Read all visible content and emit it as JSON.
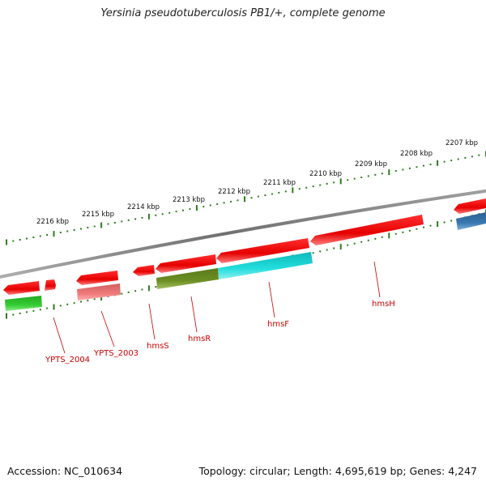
{
  "title": "Yersinia pseudotuberculosis PB1/+, complete genome",
  "footer": {
    "accession": "Accession: NC_010634",
    "topology": "Topology: circular; Length: 4,695,619 bp; Genes: 4,247"
  },
  "scale_labels": [
    "2216 kbp",
    "2215 kbp",
    "2214 kbp",
    "2213 kbp",
    "2212 kbp",
    "2211 kbp",
    "2210 kbp",
    "2209 kbp",
    "2208 kbp",
    "2207 kbp"
  ],
  "gene_labels": [
    "YPTS_2004",
    "YPTS_2003",
    "hmsS",
    "hmsR",
    "hmsF",
    "hmsH"
  ],
  "colors": {
    "backbone": "#7a7a7a",
    "tick": "#2e7d1e",
    "cds_forward": "#ee1111",
    "cds_reverse_pale": "#f08080",
    "cog_green": "#33bb33",
    "cog_olive": "#6b8e23",
    "cog_cyan": "#22cccc",
    "cog_blue": "#3a78b0",
    "label": "#cc0000"
  }
}
